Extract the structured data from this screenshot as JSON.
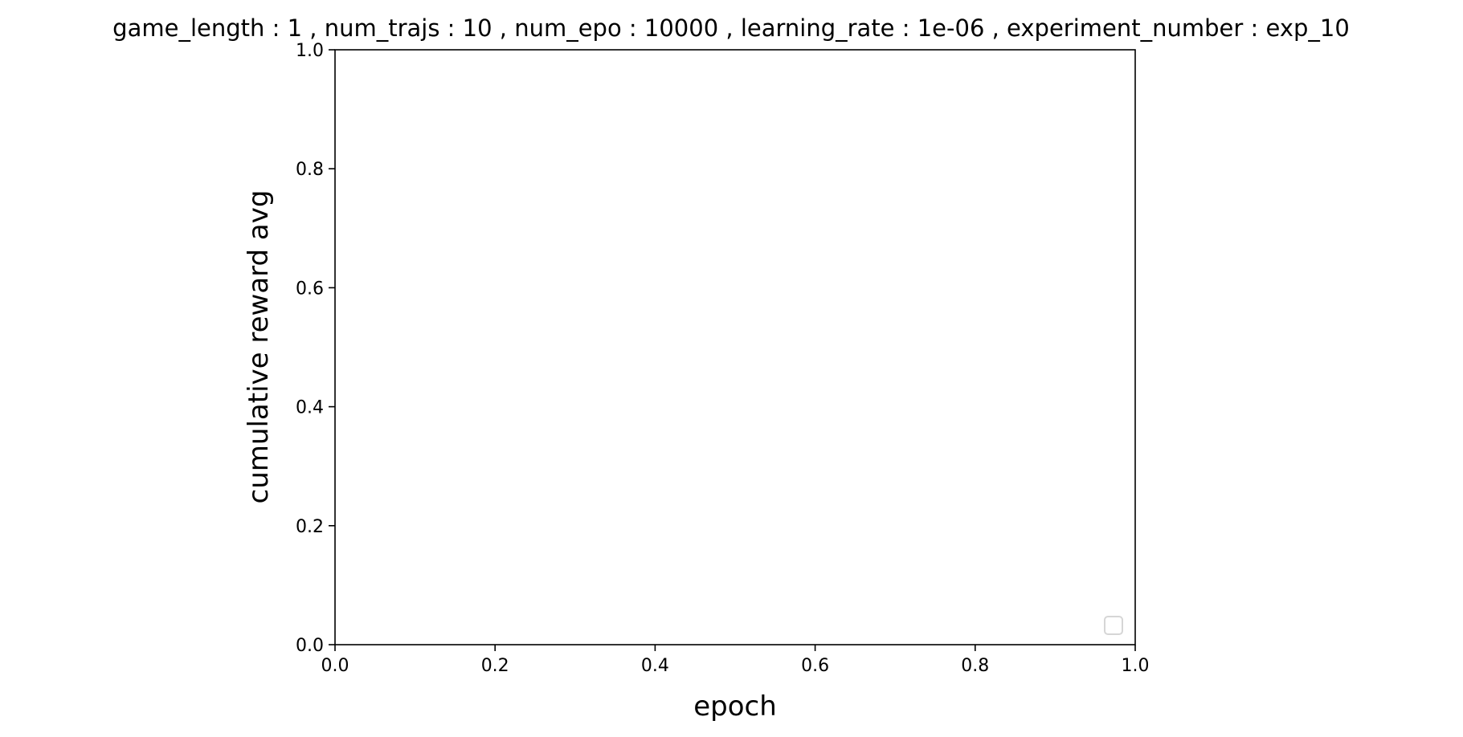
{
  "chart_data": {
    "type": "line",
    "title": "game_length : 1 , num_trajs : 10 , num_epo : 10000 , learning_rate : 1e-06 , experiment_number : exp_10",
    "xlabel": "epoch",
    "ylabel": "cumulative reward avg",
    "xlim": [
      0.0,
      1.0
    ],
    "ylim": [
      0.0,
      1.0
    ],
    "x_ticks": [
      "0.0",
      "0.2",
      "0.4",
      "0.6",
      "0.8",
      "1.0"
    ],
    "y_ticks": [
      "0.0",
      "0.2",
      "0.4",
      "0.6",
      "0.8",
      "1.0"
    ],
    "series": [],
    "grid": false,
    "legend": {
      "placement": "lower right",
      "entries": []
    }
  }
}
